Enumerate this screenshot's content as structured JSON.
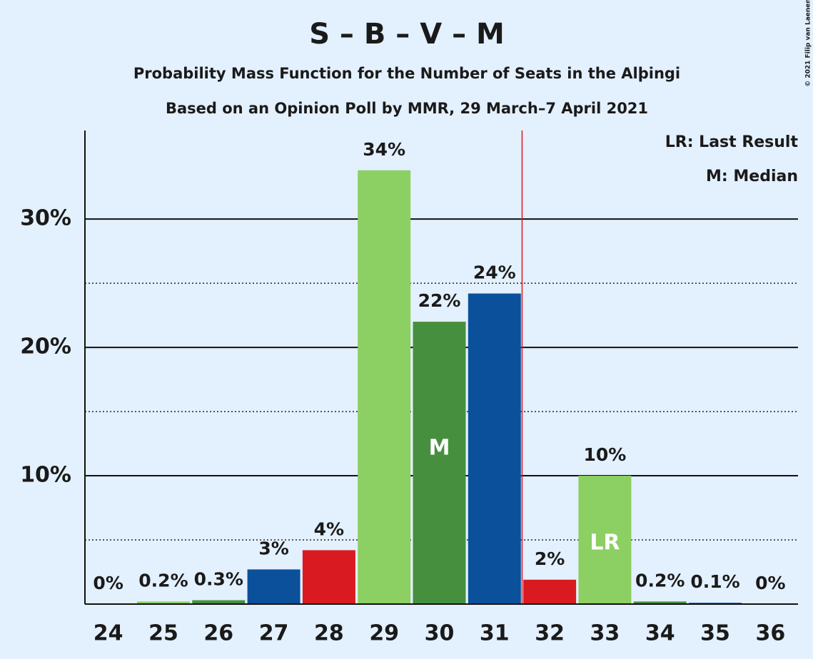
{
  "chart_data": {
    "type": "bar",
    "title": "S – B – V – M",
    "subtitle": "Probability Mass Function for the Number of Seats in the Alþingi",
    "subtitle2": "Based on an Opinion Poll by MMR, 29 March–7 April 2021",
    "copyright": "© 2021 Filip van Laenen",
    "legend": [
      "LR: Last Result",
      "M: Median"
    ],
    "x": [
      24,
      25,
      26,
      27,
      28,
      29,
      30,
      31,
      32,
      33,
      34,
      35,
      36
    ],
    "values": [
      0,
      0.2,
      0.3,
      2.7,
      4.2,
      33.8,
      22.0,
      24.2,
      1.9,
      10.0,
      0.2,
      0.1,
      0
    ],
    "value_labels": [
      "0%",
      "0.2%",
      "0.3%",
      "3%",
      "4%",
      "34%",
      "22%",
      "24%",
      "2%",
      "10%",
      "0.2%",
      "0.1%",
      "0%"
    ],
    "colors": [
      "#da1a21",
      "#8ccf63",
      "#468f3f",
      "#0b509a",
      "#da1a21",
      "#8ccf63",
      "#468f3f",
      "#0b509a",
      "#da1a21",
      "#8ccf63",
      "#468f3f",
      "#0b509a",
      "#da1a21"
    ],
    "xlim": [
      23.5,
      36.5
    ],
    "ylim": [
      0,
      36.9
    ],
    "yticks": [
      {
        "value": 10,
        "label": "10%"
      },
      {
        "value": 20,
        "label": "20%"
      },
      {
        "value": 30,
        "label": "30%"
      }
    ],
    "minor_gridlines": [
      5,
      15,
      25
    ],
    "majority_line": 31.5,
    "median": {
      "x": 30,
      "label": "M"
    },
    "last_result": {
      "x": 33,
      "label": "LR"
    }
  }
}
